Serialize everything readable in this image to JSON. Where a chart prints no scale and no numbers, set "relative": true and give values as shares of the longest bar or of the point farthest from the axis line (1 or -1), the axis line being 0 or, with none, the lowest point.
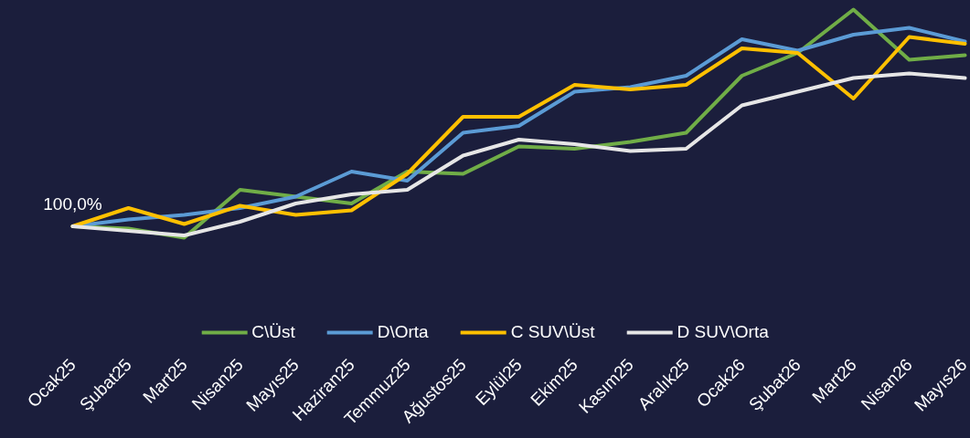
{
  "chart_data": {
    "type": "line",
    "relative": true,
    "legend": "bottom",
    "categories": [
      "Ocak25",
      "Şubat25",
      "Mart25",
      "Nisan25",
      "Mayıs25",
      "Haziran25",
      "Temmuz25",
      "Ağustos25",
      "Eylül25",
      "Ekim25",
      "Kasım25",
      "Aralık25",
      "Ocak26",
      "Şubat26",
      "Mart26",
      "Nisan26",
      "Mayıs26"
    ],
    "series": [
      {
        "name": "C\\Üst",
        "color": "#70ad47",
        "values": [
          0.05,
          0.04,
          0,
          0.21,
          0.18,
          0.15,
          0.29,
          0.28,
          0.4,
          0.39,
          0.42,
          0.46,
          0.71,
          0.81,
          1,
          0.78,
          0.8
        ]
      },
      {
        "name": "D\\Orta",
        "color": "#5b9bd5",
        "values": [
          0.05,
          0.08,
          0.1,
          0.13,
          0.18,
          0.29,
          0.25,
          0.46,
          0.49,
          0.64,
          0.66,
          0.71,
          0.87,
          0.82,
          0.89,
          0.92,
          0.86
        ]
      },
      {
        "name": "C SUV\\Üst",
        "color": "#ffc000",
        "values": [
          0.05,
          0.13,
          0.06,
          0.14,
          0.1,
          0.12,
          0.28,
          0.53,
          0.53,
          0.67,
          0.65,
          0.67,
          0.83,
          0.81,
          0.61,
          0.88,
          0.85
        ]
      },
      {
        "name": "D SUV\\Orta",
        "color": "#e6e6e6",
        "values": [
          0.05,
          0.03,
          0.01,
          0.07,
          0.15,
          0.19,
          0.21,
          0.36,
          0.43,
          0.41,
          0.38,
          0.39,
          0.58,
          0.64,
          0.7,
          0.72,
          0.7
        ]
      }
    ],
    "annotations": [
      {
        "text": "100,0%",
        "x": "Ocak25",
        "y": 0.05
      }
    ]
  }
}
